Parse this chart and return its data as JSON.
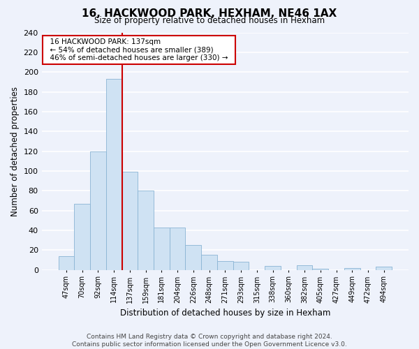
{
  "title": "16, HACKWOOD PARK, HEXHAM, NE46 1AX",
  "subtitle": "Size of property relative to detached houses in Hexham",
  "xlabel": "Distribution of detached houses by size in Hexham",
  "ylabel": "Number of detached properties",
  "bin_labels": [
    "47sqm",
    "70sqm",
    "92sqm",
    "114sqm",
    "137sqm",
    "159sqm",
    "181sqm",
    "204sqm",
    "226sqm",
    "248sqm",
    "271sqm",
    "293sqm",
    "315sqm",
    "338sqm",
    "360sqm",
    "382sqm",
    "405sqm",
    "427sqm",
    "449sqm",
    "472sqm",
    "494sqm"
  ],
  "bar_values": [
    14,
    67,
    120,
    193,
    99,
    80,
    43,
    43,
    25,
    15,
    9,
    8,
    0,
    4,
    0,
    5,
    1,
    0,
    2,
    0,
    3
  ],
  "bar_color": "#cfe2f3",
  "bar_edge_color": "#8ab4d4",
  "property_line_color": "#cc0000",
  "annotation_title": "16 HACKWOOD PARK: 137sqm",
  "annotation_line1": "← 54% of detached houses are smaller (389)",
  "annotation_line2": "46% of semi-detached houses are larger (330) →",
  "annotation_box_color": "white",
  "annotation_box_edgecolor": "#cc0000",
  "ylim": [
    0,
    240
  ],
  "yticks": [
    0,
    20,
    40,
    60,
    80,
    100,
    120,
    140,
    160,
    180,
    200,
    220,
    240
  ],
  "footer_line1": "Contains HM Land Registry data © Crown copyright and database right 2024.",
  "footer_line2": "Contains public sector information licensed under the Open Government Licence v3.0.",
  "background_color": "#eef2fb"
}
